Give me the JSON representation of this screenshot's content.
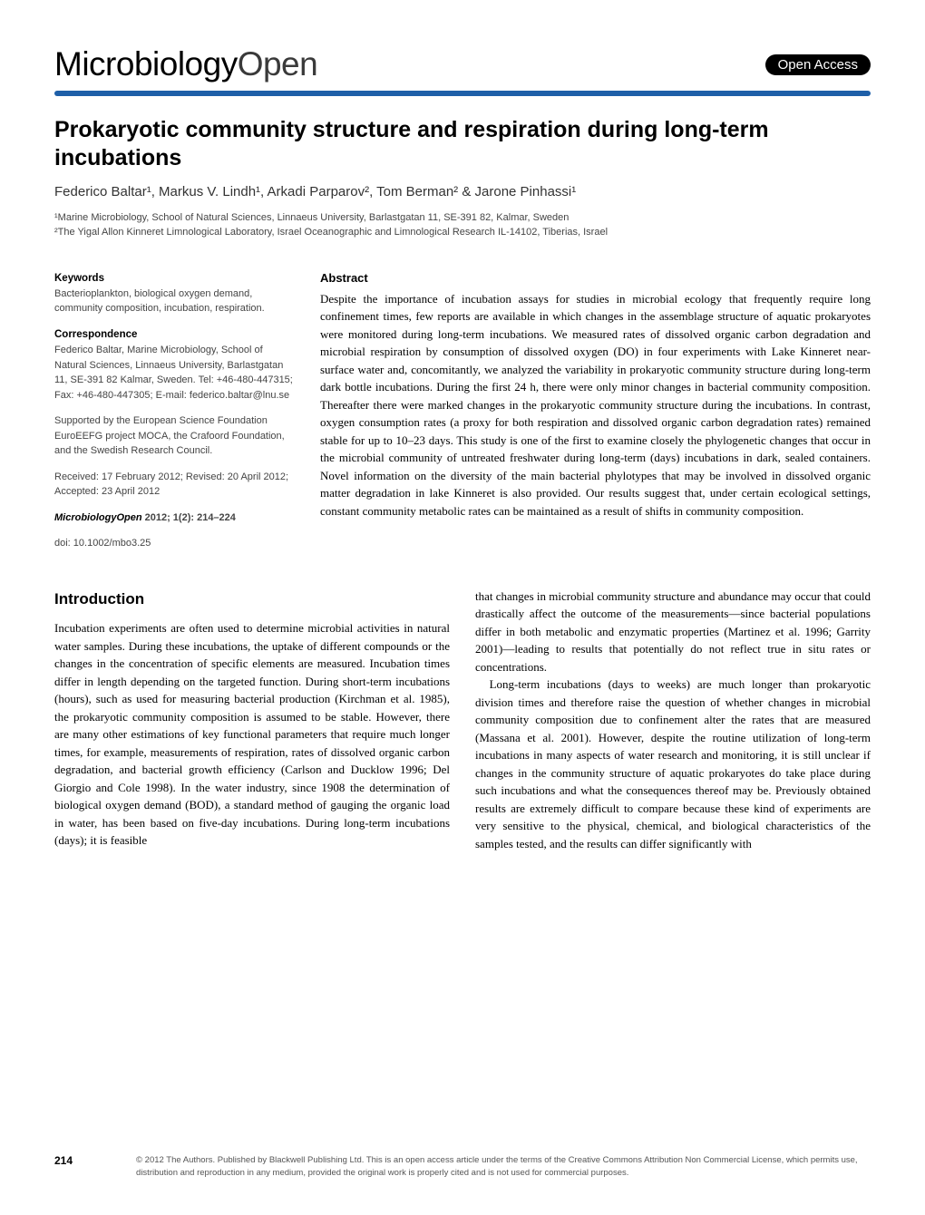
{
  "header": {
    "journal_prefix": "Microbiology",
    "journal_suffix": "Open",
    "open_access": "Open Access"
  },
  "article": {
    "title": "Prokaryotic community structure and respiration during long-term incubations",
    "authors": "Federico Baltar¹, Markus V. Lindh¹, Arkadi Parparov², Tom Berman² & Jarone Pinhassi¹",
    "affil1": "¹Marine Microbiology, School of Natural Sciences, Linnaeus University, Barlastgatan 11, SE-391 82, Kalmar, Sweden",
    "affil2": "²The Yigal Allon Kinneret Limnological Laboratory, Israel Oceanographic and Limnological Research IL-14102, Tiberias, Israel"
  },
  "sidebar": {
    "keywords_label": "Keywords",
    "keywords": "Bacterioplankton, biological oxygen demand, community composition, incubation, respiration.",
    "corr_label": "Correspondence",
    "corr": "Federico Baltar, Marine Microbiology, School of Natural Sciences, Linnaeus University, Barlastgatan 11, SE-391 82 Kalmar, Sweden. Tel: +46-480-447315; Fax: +46-480-447305; E-mail: federico.baltar@lnu.se",
    "funding": "Supported by the European Science Foundation EuroEEFG project MOCA, the Crafoord Foundation, and the Swedish Research Council.",
    "dates": "Received: 17 February 2012; Revised: 20 April 2012; Accepted: 23 April 2012",
    "citation_journal": "MicrobiologyOpen",
    "citation_vol": " 2012; 1(2): 214–224",
    "doi": "doi: 10.1002/mbo3.25"
  },
  "abstract": {
    "heading": "Abstract",
    "text": "Despite the importance of incubation assays for studies in microbial ecology that frequently require long confinement times, few reports are available in which changes in the assemblage structure of aquatic prokaryotes were monitored during long-term incubations. We measured rates of dissolved organic carbon degradation and microbial respiration by consumption of dissolved oxygen (DO) in four experiments with Lake Kinneret near-surface water and, concomitantly, we analyzed the variability in prokaryotic community structure during long-term dark bottle incubations. During the first 24 h, there were only minor changes in bacterial community composition. Thereafter there were marked changes in the prokaryotic community structure during the incubations. In contrast, oxygen consumption rates (a proxy for both respiration and dissolved organic carbon degradation rates) remained stable for up to 10–23 days. This study is one of the first to examine closely the phylogenetic changes that occur in the microbial community of untreated freshwater during long-term (days) incubations in dark, sealed containers. Novel information on the diversity of the main bacterial phylotypes that may be involved in dissolved organic matter degradation in lake Kinneret is also provided. Our results suggest that, under certain ecological settings, constant community metabolic rates can be maintained as a result of shifts in community composition."
  },
  "intro": {
    "heading": "Introduction",
    "col1": "Incubation experiments are often used to determine microbial activities in natural water samples. During these incubations, the uptake of different compounds or the changes in the concentration of specific elements are measured. Incubation times differ in length depending on the targeted function. During short-term incubations (hours), such as used for measuring bacterial production (Kirchman et al. 1985), the prokaryotic community composition is assumed to be stable. However, there are many other estimations of key functional parameters that require much longer times, for example, measurements of respiration, rates of dissolved organic carbon degradation, and bacterial growth efficiency (Carlson and Ducklow 1996; Del Giorgio and Cole 1998). In the water industry, since 1908 the determination of biological oxygen demand (BOD), a standard method of gauging the organic load in water, has been based on five-day incubations. During long-term incubations (days); it is feasible",
    "col2a": "that changes in microbial community structure and abundance may occur that could drastically affect the outcome of the measurements—since bacterial populations differ in both metabolic and enzymatic properties (Martinez et al. 1996; Garrity 2001)—leading to results that potentially do not reflect true in situ rates or concentrations.",
    "col2b": "Long-term incubations (days to weeks) are much longer than prokaryotic division times and therefore raise the question of whether changes in microbial community composition due to confinement alter the rates that are measured (Massana et al. 2001). However, despite the routine utilization of long-term incubations in many aspects of water research and monitoring, it is still unclear if changes in the community structure of aquatic prokaryotes do take place during such incubations and what the consequences thereof may be. Previously obtained results are extremely difficult to compare because these kind of experiments are very sensitive to the physical, chemical, and biological characteristics of the samples tested, and the results can differ significantly with"
  },
  "footer": {
    "page": "214",
    "copyright": "© 2012 The Authors. Published by Blackwell Publishing Ltd. This is an open access article under the terms of the Creative Commons Attribution Non Commercial License, which permits use, distribution and reproduction in any medium, provided the original work is properly cited and is not used for commercial purposes."
  },
  "colors": {
    "rule": "#1e5fa8",
    "badge_bg": "#000000",
    "badge_fg": "#ffffff",
    "text": "#000000",
    "meta_text": "#444444"
  },
  "typography": {
    "journal_fontsize": 37,
    "title_fontsize": 25,
    "body_fontsize": 13,
    "sidebar_fontsize": 11
  }
}
